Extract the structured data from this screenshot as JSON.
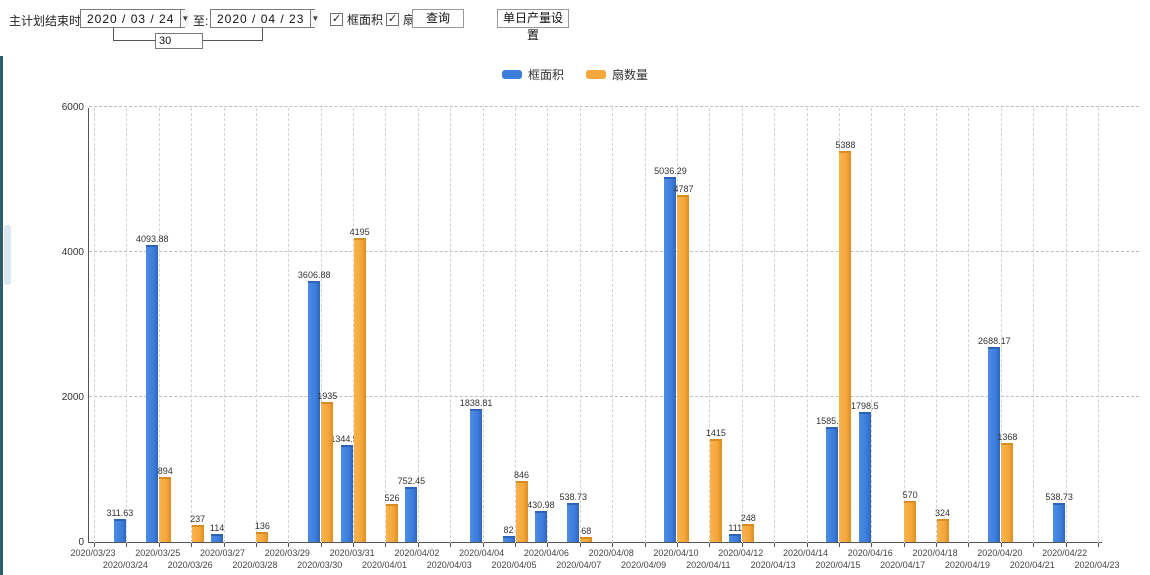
{
  "toolbar": {
    "plan_end_label": "主计划结束时间:",
    "date_from": "2020 / 03 / 24",
    "to_label": "至:",
    "date_to": "2020 / 04 / 23",
    "interval_days": "30",
    "checkbox_frame_area": {
      "label": "框面积",
      "checked": true,
      "check_glyph": "✓"
    },
    "checkbox_sash_count": {
      "label": "扇数量",
      "checked": true,
      "check_glyph": "✓"
    },
    "query_button": "查询",
    "daily_output_button": "单日产量设置",
    "dropdown_glyph": "▼"
  },
  "legend": {
    "items": [
      {
        "label": "框面积",
        "color": "#3d7edd"
      },
      {
        "label": "扇数量",
        "color": "#f5a73b"
      }
    ]
  },
  "chart_data": {
    "type": "bar",
    "title": "",
    "xlabel": "",
    "ylabel": "",
    "ylim": [
      0,
      6000
    ],
    "yticks": [
      0,
      2000,
      4000,
      6000
    ],
    "grid": true,
    "legend_position": "top",
    "categories": [
      "2020/03/23",
      "2020/03/24",
      "2020/03/25",
      "2020/03/26",
      "2020/03/27",
      "2020/03/28",
      "2020/03/29",
      "2020/03/30",
      "2020/03/31",
      "2020/04/01",
      "2020/04/02",
      "2020/04/03",
      "2020/04/04",
      "2020/04/05",
      "2020/04/06",
      "2020/04/07",
      "2020/04/08",
      "2020/04/09",
      "2020/04/10",
      "2020/04/11",
      "2020/04/12",
      "2020/04/13",
      "2020/04/14",
      "2020/04/15",
      "2020/04/16",
      "2020/04/17",
      "2020/04/18",
      "2020/04/19",
      "2020/04/20",
      "2020/04/21",
      "2020/04/22",
      "2020/04/23"
    ],
    "series": [
      {
        "name": "框面积",
        "color": "#3d7edd",
        "values": [
          null,
          "311.63",
          "4093.88",
          null,
          "114",
          null,
          null,
          "3606.88",
          "1344.95",
          null,
          "752.45",
          null,
          "1838.81",
          "82",
          "430.98",
          "538.73",
          null,
          null,
          "5036.29",
          null,
          "111",
          null,
          null,
          "1585.96",
          "1798.5",
          null,
          null,
          null,
          "2688.17",
          null,
          "538.73",
          null
        ]
      },
      {
        "name": "扇数量",
        "color": "#f5a73b",
        "values": [
          null,
          null,
          "894",
          "237",
          null,
          "136",
          null,
          "1935",
          "4195",
          "526",
          null,
          null,
          null,
          "846",
          null,
          "68",
          null,
          null,
          "4787",
          "1415",
          "248",
          null,
          null,
          "5388",
          null,
          "570",
          "324",
          null,
          "1368",
          null,
          null,
          null
        ]
      }
    ]
  }
}
